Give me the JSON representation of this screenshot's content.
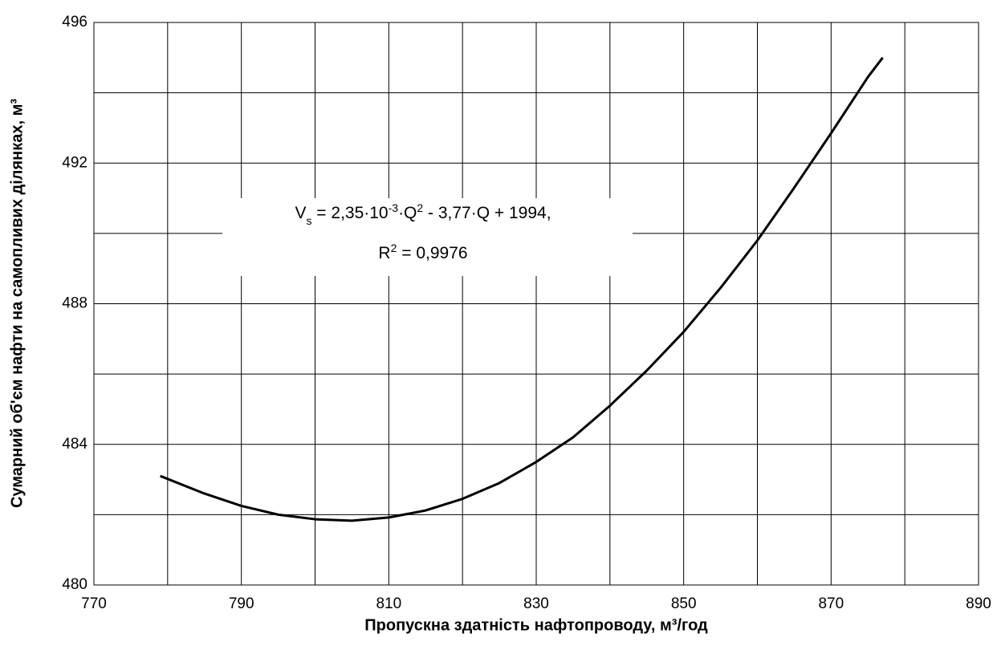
{
  "chart_data": {
    "type": "line",
    "x_label": "Пропускна здатність нафтопроводу,  м³/год",
    "y_label": "Сумарний об'єм нафти на самопливих ділянках,  м³",
    "xlim": [
      770,
      890
    ],
    "xticks": [
      770,
      790,
      810,
      830,
      850,
      870,
      890
    ],
    "x_minor_ticks": [
      780,
      800,
      820,
      840,
      860,
      880
    ],
    "ylim": [
      480,
      496
    ],
    "yticks": [
      480,
      484,
      488,
      492,
      496
    ],
    "y_minor_ticks": [
      482,
      486,
      490,
      494
    ],
    "grid": true,
    "series": [
      {
        "color": "#000000",
        "x": [
          779,
          785,
          790,
          795,
          800,
          805,
          810,
          815,
          820,
          825,
          830,
          835,
          840,
          845,
          850,
          855,
          860,
          865,
          870,
          875,
          877
        ],
        "values": [
          483.1,
          482.6,
          482.25,
          482.0,
          481.87,
          481.83,
          481.92,
          482.12,
          482.45,
          482.9,
          483.5,
          484.2,
          485.1,
          486.1,
          487.2,
          488.45,
          489.8,
          491.3,
          492.85,
          494.45,
          495.0
        ]
      }
    ],
    "annotation": {
      "lines": [
        [
          {
            "text": "V"
          },
          {
            "text": "s",
            "style": "sub"
          },
          {
            "text": " = 2,35·10"
          },
          {
            "text": "-3",
            "style": "sup"
          },
          {
            "text": "·Q"
          },
          {
            "text": "2",
            "style": "sup"
          },
          {
            "text": " - 3,77·Q + 1994,"
          }
        ],
        [
          {
            "text": "R"
          },
          {
            "text": "2",
            "style": "sup"
          },
          {
            "text": " = 0,9976"
          }
        ]
      ]
    }
  }
}
